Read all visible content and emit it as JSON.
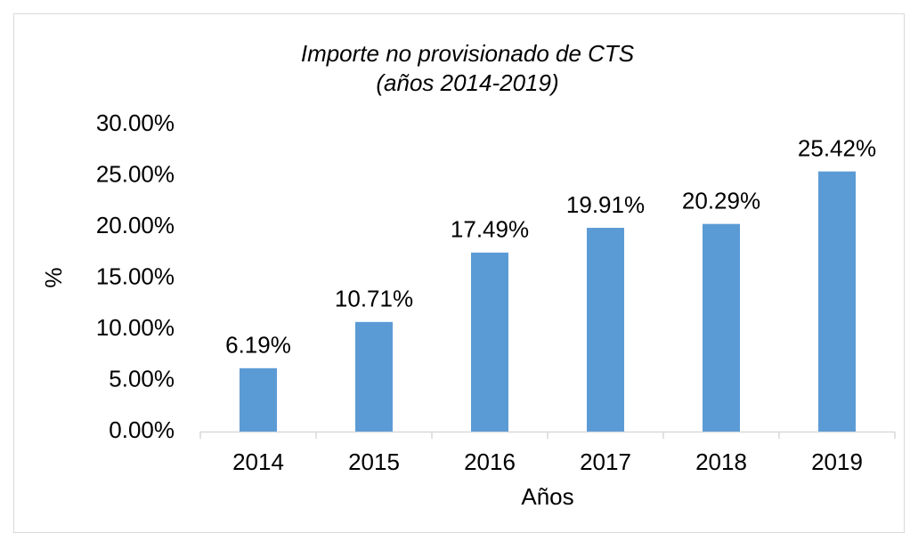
{
  "chart_data": {
    "type": "bar",
    "title": "Importe no provisionado de CTS",
    "subtitle": "(años 2014-2019)",
    "x_label": "Años",
    "y_label": "%",
    "categories": [
      "2014",
      "2015",
      "2016",
      "2017",
      "2018",
      "2019"
    ],
    "values": [
      6.19,
      10.71,
      17.49,
      19.91,
      20.29,
      25.42
    ],
    "value_labels": [
      "6.19%",
      "10.71%",
      "17.49%",
      "19.91%",
      "20.29%",
      "25.42%"
    ],
    "color": "#5b9bd5",
    "ylim": [
      0,
      30
    ],
    "yticks": [
      {
        "value": 0,
        "label": "0.00%"
      },
      {
        "value": 5,
        "label": "5.00%"
      },
      {
        "value": 10,
        "label": "10.00%"
      },
      {
        "value": 15,
        "label": "15.00%"
      },
      {
        "value": 20,
        "label": "20.00%"
      },
      {
        "value": 25,
        "label": "25.00%"
      },
      {
        "value": 30,
        "label": "30.00%"
      }
    ],
    "grid": false
  }
}
